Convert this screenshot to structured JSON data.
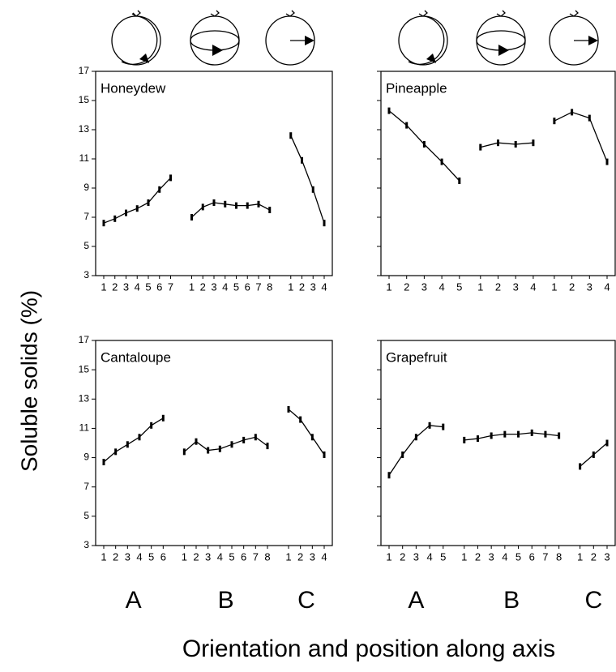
{
  "y_label": "Soluble solids (%)",
  "x_label": "Orientation and position along axis",
  "group_labels": [
    "A",
    "B",
    "C"
  ],
  "chart_data": [
    {
      "type": "line",
      "title": "Honeydew",
      "ylim": [
        3,
        17
      ],
      "yticks": [
        3,
        5,
        7,
        9,
        11,
        13,
        15,
        17
      ],
      "ytick_labels": true,
      "groups": [
        {
          "x": [
            1,
            2,
            3,
            4,
            5,
            6,
            7
          ],
          "values": [
            6.6,
            6.9,
            7.3,
            7.6,
            8.0,
            8.9,
            9.7
          ]
        },
        {
          "x": [
            1,
            2,
            3,
            4,
            5,
            6,
            7,
            8
          ],
          "values": [
            7.0,
            7.7,
            8.0,
            7.9,
            7.8,
            7.8,
            7.9,
            7.5
          ]
        },
        {
          "x": [
            1,
            2,
            3,
            4
          ],
          "values": [
            12.6,
            10.9,
            8.9,
            6.6
          ]
        }
      ]
    },
    {
      "type": "line",
      "title": "Pineapple",
      "ylim": [
        3,
        17
      ],
      "yticks": [
        3,
        5,
        7,
        9,
        11,
        13,
        15,
        17
      ],
      "ytick_labels": false,
      "groups": [
        {
          "x": [
            1,
            2,
            3,
            4,
            5
          ],
          "values": [
            14.3,
            13.3,
            12.0,
            10.8,
            9.5
          ]
        },
        {
          "x": [
            1,
            2,
            3,
            4
          ],
          "values": [
            11.8,
            12.1,
            12.0,
            12.1
          ]
        },
        {
          "x": [
            1,
            2,
            3,
            4
          ],
          "values": [
            13.6,
            14.2,
            13.8,
            10.8
          ]
        }
      ]
    },
    {
      "type": "line",
      "title": "Cantaloupe",
      "ylim": [
        3,
        17
      ],
      "yticks": [
        3,
        5,
        7,
        9,
        11,
        13,
        15,
        17
      ],
      "ytick_labels": true,
      "groups": [
        {
          "x": [
            1,
            2,
            3,
            4,
            5,
            6
          ],
          "values": [
            8.7,
            9.4,
            9.9,
            10.4,
            11.2,
            11.7
          ]
        },
        {
          "x": [
            1,
            2,
            3,
            4,
            5,
            6,
            7,
            8
          ],
          "values": [
            9.4,
            10.1,
            9.5,
            9.6,
            9.9,
            10.2,
            10.4,
            9.8
          ]
        },
        {
          "x": [
            1,
            2,
            3,
            4
          ],
          "values": [
            12.3,
            11.6,
            10.4,
            9.2
          ]
        }
      ]
    },
    {
      "type": "line",
      "title": "Grapefruit",
      "ylim": [
        3,
        17
      ],
      "yticks": [
        3,
        5,
        7,
        9,
        11,
        13,
        15,
        17
      ],
      "ytick_labels": false,
      "groups": [
        {
          "x": [
            1,
            2,
            3,
            4,
            5
          ],
          "values": [
            7.8,
            9.2,
            10.4,
            11.2,
            11.1
          ]
        },
        {
          "x": [
            1,
            2,
            3,
            4,
            5,
            6,
            7,
            8
          ],
          "values": [
            10.2,
            10.3,
            10.5,
            10.6,
            10.6,
            10.7,
            10.6,
            10.5
          ]
        },
        {
          "x": [
            1,
            2,
            3
          ],
          "values": [
            8.4,
            9.2,
            10.0
          ]
        }
      ]
    }
  ]
}
